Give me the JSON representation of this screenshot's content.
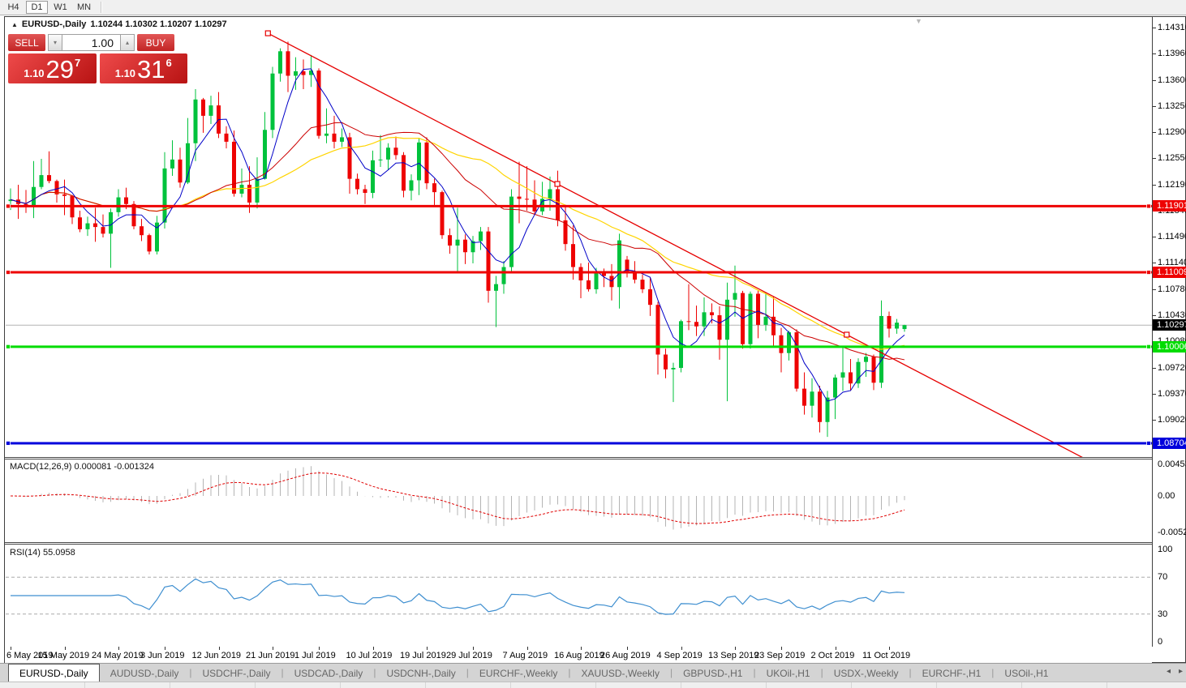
{
  "toolbar": {
    "timeframes": [
      "H4",
      "D1",
      "W1",
      "MN"
    ],
    "active_timeframe": "D1"
  },
  "chart": {
    "collapse_icon": "▲",
    "title_symbol": "EURUSD-,Daily",
    "title_ohlc": "1.10244 1.10302 1.10207 1.10297",
    "shift_marker_icon": "▼",
    "trade_panel": {
      "sell_label": "SELL",
      "buy_label": "BUY",
      "volume": "1.00",
      "volume_down_icon": "▾",
      "volume_up_icon": "▴",
      "sell_price_prefix": "1.10",
      "sell_price_big": "29",
      "sell_price_sup": "7",
      "buy_price_prefix": "1.10",
      "buy_price_big": "31",
      "buy_price_sup": "6"
    },
    "price_axis_ticks": [
      "1.14310",
      "1.13960",
      "1.13600",
      "1.13250",
      "1.12900",
      "1.12550",
      "1.12190",
      "1.11840",
      "1.11490",
      "1.11140",
      "1.10780",
      "1.10430",
      "1.10080",
      "1.09720",
      "1.09370",
      "1.09020"
    ],
    "levels": [
      {
        "label": "1.11901",
        "value": 1.11901,
        "color": "#ee0202",
        "width": 3
      },
      {
        "label": "1.11009",
        "value": 1.11009,
        "color": "#ee0202",
        "width": 3
      },
      {
        "label": "1.10006",
        "value": 1.10006,
        "color": "#00dc00",
        "width": 3
      },
      {
        "label": "1.08704",
        "value": 1.08704,
        "color": "#0000dc",
        "width": 3
      }
    ],
    "current_price": {
      "label": "1.10297",
      "value": 1.10297
    },
    "trendline": {
      "i1": 33.4,
      "p1": 1.14233,
      "i2": 108.5,
      "p2": 1.10168,
      "extend_i": 140
    },
    "date_labels": [
      {
        "text": "6 May 2019",
        "i": 0
      },
      {
        "text": "15 May 2019",
        "i": 7
      },
      {
        "text": "24 May 2019",
        "i": 14
      },
      {
        "text": "3 Jun 2019",
        "i": 20
      },
      {
        "text": "12 Jun 2019",
        "i": 27
      },
      {
        "text": "21 Jun 2019",
        "i": 34
      },
      {
        "text": "1 Jul 2019",
        "i": 40
      },
      {
        "text": "10 Jul 2019",
        "i": 47
      },
      {
        "text": "19 Jul 2019",
        "i": 54
      },
      {
        "text": "29 Jul 2019",
        "i": 60
      },
      {
        "text": "7 Aug 2019",
        "i": 67
      },
      {
        "text": "16 Aug 2019",
        "i": 74
      },
      {
        "text": "26 Aug 2019",
        "i": 80
      },
      {
        "text": "4 Sep 2019",
        "i": 87
      },
      {
        "text": "13 Sep 2019",
        "i": 94
      },
      {
        "text": "23 Sep 2019",
        "i": 100
      },
      {
        "text": "2 Oct 2019",
        "i": 107
      },
      {
        "text": "11 Oct 2019",
        "i": 114
      }
    ],
    "candles": [
      [
        1.1197,
        1.1214,
        1.1185,
        1.1199
      ],
      [
        1.1199,
        1.1219,
        1.1173,
        1.1193
      ],
      [
        1.1193,
        1.1212,
        1.1181,
        1.1189
      ],
      [
        1.1189,
        1.1251,
        1.1174,
        1.1216
      ],
      [
        1.1216,
        1.1254,
        1.1213,
        1.1232
      ],
      [
        1.1232,
        1.1264,
        1.1221,
        1.1224
      ],
      [
        1.1224,
        1.1226,
        1.1195,
        1.1206
      ],
      [
        1.1206,
        1.1226,
        1.1178,
        1.1204
      ],
      [
        1.1204,
        1.1205,
        1.1166,
        1.1175
      ],
      [
        1.1175,
        1.1184,
        1.1155,
        1.1159
      ],
      [
        1.1159,
        1.1176,
        1.115,
        1.1167
      ],
      [
        1.1167,
        1.1188,
        1.1142,
        1.1162
      ],
      [
        1.1162,
        1.1179,
        1.1148,
        1.1153
      ],
      [
        1.1153,
        1.1187,
        1.1107,
        1.1182
      ],
      [
        1.1182,
        1.1213,
        1.1176,
        1.1202
      ],
      [
        1.1202,
        1.1215,
        1.1186,
        1.1193
      ],
      [
        1.1193,
        1.1197,
        1.1159,
        1.1163
      ],
      [
        1.1163,
        1.1173,
        1.1143,
        1.1151
      ],
      [
        1.1151,
        1.1153,
        1.1125,
        1.1129
      ],
      [
        1.1129,
        1.1177,
        1.1125,
        1.1168
      ],
      [
        1.1168,
        1.1263,
        1.116,
        1.1241
      ],
      [
        1.1241,
        1.1279,
        1.1231,
        1.1253
      ],
      [
        1.1253,
        1.1269,
        1.1215,
        1.1222
      ],
      [
        1.1222,
        1.1309,
        1.122,
        1.1275
      ],
      [
        1.1275,
        1.1348,
        1.1251,
        1.1334
      ],
      [
        1.1334,
        1.1336,
        1.1289,
        1.1312
      ],
      [
        1.1312,
        1.1339,
        1.1301,
        1.1326
      ],
      [
        1.1326,
        1.1344,
        1.1282,
        1.1288
      ],
      [
        1.1288,
        1.1298,
        1.1268,
        1.1277
      ],
      [
        1.1277,
        1.1292,
        1.1203,
        1.1207
      ],
      [
        1.1207,
        1.1241,
        1.1202,
        1.1219
      ],
      [
        1.1219,
        1.1244,
        1.1181,
        1.1195
      ],
      [
        1.1195,
        1.1256,
        1.1187,
        1.1227
      ],
      [
        1.1227,
        1.1317,
        1.1226,
        1.1293
      ],
      [
        1.1293,
        1.1378,
        1.1282,
        1.1369
      ],
      [
        1.1369,
        1.1403,
        1.1358,
        1.1399
      ],
      [
        1.1399,
        1.1412,
        1.1344,
        1.1366
      ],
      [
        1.1366,
        1.1391,
        1.1347,
        1.1372
      ],
      [
        1.1372,
        1.1388,
        1.1348,
        1.1367
      ],
      [
        1.1367,
        1.1394,
        1.1351,
        1.1373
      ],
      [
        1.1373,
        1.1376,
        1.1281,
        1.1285
      ],
      [
        1.1285,
        1.1322,
        1.1275,
        1.1288
      ],
      [
        1.1288,
        1.1312,
        1.1268,
        1.1277
      ],
      [
        1.1277,
        1.1295,
        1.127,
        1.1283
      ],
      [
        1.1283,
        1.1289,
        1.1207,
        1.1227
      ],
      [
        1.1227,
        1.1234,
        1.1206,
        1.1213
      ],
      [
        1.1213,
        1.1219,
        1.1193,
        1.1208
      ],
      [
        1.1208,
        1.1265,
        1.1201,
        1.1252
      ],
      [
        1.1252,
        1.1286,
        1.1243,
        1.1253
      ],
      [
        1.1253,
        1.1275,
        1.1239,
        1.1269
      ],
      [
        1.1269,
        1.1284,
        1.1253,
        1.1259
      ],
      [
        1.1259,
        1.1263,
        1.1202,
        1.1211
      ],
      [
        1.1211,
        1.1233,
        1.1198,
        1.1225
      ],
      [
        1.1225,
        1.1282,
        1.1205,
        1.1276
      ],
      [
        1.1276,
        1.1283,
        1.1213,
        1.1221
      ],
      [
        1.1221,
        1.1227,
        1.1189,
        1.1209
      ],
      [
        1.1209,
        1.1211,
        1.1146,
        1.1151
      ],
      [
        1.1151,
        1.116,
        1.1126,
        1.1137
      ],
      [
        1.1137,
        1.1188,
        1.1101,
        1.1145
      ],
      [
        1.1145,
        1.1152,
        1.1112,
        1.1128
      ],
      [
        1.1128,
        1.115,
        1.1113,
        1.1143
      ],
      [
        1.1143,
        1.1162,
        1.1131,
        1.1156
      ],
      [
        1.1156,
        1.1162,
        1.106,
        1.1076
      ],
      [
        1.1076,
        1.1096,
        1.1027,
        1.1085
      ],
      [
        1.1085,
        1.1116,
        1.1072,
        1.1108
      ],
      [
        1.1108,
        1.1213,
        1.1101,
        1.1203
      ],
      [
        1.1203,
        1.125,
        1.1167,
        1.12
      ],
      [
        1.12,
        1.1244,
        1.1184,
        1.1199
      ],
      [
        1.1199,
        1.1225,
        1.118,
        1.1183
      ],
      [
        1.1183,
        1.1223,
        1.1178,
        1.12
      ],
      [
        1.12,
        1.123,
        1.1184,
        1.1213
      ],
      [
        1.1213,
        1.1238,
        1.1163,
        1.1171
      ],
      [
        1.1171,
        1.1192,
        1.113,
        1.1139
      ],
      [
        1.1139,
        1.1164,
        1.1091,
        1.1108
      ],
      [
        1.1108,
        1.1113,
        1.1066,
        1.109
      ],
      [
        1.109,
        1.1114,
        1.1075,
        1.1078
      ],
      [
        1.1078,
        1.1107,
        1.1072,
        1.11
      ],
      [
        1.11,
        1.1106,
        1.1081,
        1.1096
      ],
      [
        1.1096,
        1.1112,
        1.1063,
        1.1081
      ],
      [
        1.1081,
        1.1153,
        1.1052,
        1.1144
      ],
      [
        1.1118,
        1.1123,
        1.1094,
        1.1101
      ],
      [
        1.1101,
        1.1116,
        1.1086,
        1.1091
      ],
      [
        1.1091,
        1.1098,
        1.1073,
        1.1078
      ],
      [
        1.1078,
        1.1094,
        1.1042,
        1.1057
      ],
      [
        1.1057,
        1.1061,
        1.0963,
        1.099
      ],
      [
        1.099,
        1.0998,
        1.0958,
        1.097
      ],
      [
        1.097,
        1.0979,
        1.0926,
        1.0972
      ],
      [
        1.0972,
        1.1037,
        1.0966,
        1.1035
      ],
      [
        1.1035,
        1.1085,
        1.1023,
        1.1034
      ],
      [
        1.1034,
        1.1056,
        1.1015,
        1.1028
      ],
      [
        1.1028,
        1.1067,
        1.1015,
        1.1047
      ],
      [
        1.1047,
        1.1059,
        1.1032,
        1.1043
      ],
      [
        1.1043,
        1.1055,
        1.0983,
        1.101
      ],
      [
        1.101,
        1.1087,
        1.0927,
        1.1064
      ],
      [
        1.1064,
        1.111,
        1.1041,
        1.1073
      ],
      [
        1.1073,
        1.1076,
        1.0998,
        1.1004
      ],
      [
        1.1004,
        1.1075,
        1.0998,
        1.1072
      ],
      [
        1.1072,
        1.1076,
        1.1012,
        1.103
      ],
      [
        1.103,
        1.1074,
        1.1022,
        1.1041
      ],
      [
        1.1041,
        1.1068,
        1.1,
        1.1016
      ],
      [
        1.1016,
        1.1026,
        1.0966,
        1.0992
      ],
      [
        1.0992,
        1.1022,
        1.0982,
        1.102
      ],
      [
        1.102,
        1.1024,
        1.094,
        1.0944
      ],
      [
        1.0944,
        1.0966,
        1.0909,
        1.0921
      ],
      [
        1.0921,
        1.0958,
        1.0905,
        1.094
      ],
      [
        1.094,
        1.0948,
        1.0885,
        1.0899
      ],
      [
        1.0899,
        1.0941,
        1.0879,
        1.0932
      ],
      [
        1.0932,
        1.0963,
        1.0903,
        1.0959
      ],
      [
        1.0959,
        1.0999,
        1.0941,
        1.0966
      ],
      [
        1.0966,
        1.0984,
        1.0941,
        1.0951
      ],
      [
        1.0951,
        1.0985,
        1.0945,
        1.098
      ],
      [
        1.098,
        1.0992,
        1.096,
        1.0987
      ],
      [
        1.0987,
        1.099,
        1.0942,
        1.0952
      ],
      [
        1.0952,
        1.1063,
        1.0945,
        1.1042
      ],
      [
        1.1042,
        1.1048,
        1.1013,
        1.1025
      ],
      [
        1.1025,
        1.1038,
        1.1018,
        1.1033
      ],
      [
        1.10244,
        1.10302,
        1.10207,
        1.10297
      ]
    ],
    "colors": {
      "bull": "#00c23c",
      "bear": "#ee0202",
      "ma_fast": "#0000c8",
      "ma_mid": "#cc0000",
      "ma_slow": "#ffd400",
      "trendline": "#e60000",
      "current_line": "#b4b4b4",
      "current_tag_bg": "#000000",
      "macd_hist": "#b4b4b4",
      "macd_signal": "#e00000",
      "rsi_line": "#3f8fd0"
    }
  },
  "macd": {
    "label": "MACD(12,26,9) 0.000081 -0.001324",
    "axis_ticks": [
      {
        "text": "0.004536",
        "value": 0.004536
      },
      {
        "text": "0.00",
        "value": 0.0
      },
      {
        "text": "-0.005205",
        "value": -0.005205
      }
    ]
  },
  "rsi": {
    "label": "RSI(14) 55.0958",
    "axis_ticks": [
      {
        "text": "100",
        "value": 100
      },
      {
        "text": "70",
        "value": 70
      },
      {
        "text": "30",
        "value": 30
      },
      {
        "text": "0",
        "value": 0
      }
    ],
    "dashed_levels": [
      70,
      30
    ]
  },
  "tabs": {
    "items": [
      {
        "label": "EURUSD-,Daily",
        "active": true
      },
      {
        "label": "AUDUSD-,Daily",
        "active": false
      },
      {
        "label": "USDCHF-,Daily",
        "active": false
      },
      {
        "label": "USDCAD-,Daily",
        "active": false
      },
      {
        "label": "USDCNH-,Daily",
        "active": false
      },
      {
        "label": "EURCHF-,Weekly",
        "active": false
      },
      {
        "label": "XAUUSD-,Weekly",
        "active": false
      },
      {
        "label": "GBPUSD-,H1",
        "active": false
      },
      {
        "label": "UKOil-,H1",
        "active": false
      },
      {
        "label": "USDX-,Weekly",
        "active": false
      },
      {
        "label": "EURCHF-,H1",
        "active": false
      },
      {
        "label": "USOil-,H1",
        "active": false
      }
    ],
    "scroll_left_icon": "◂",
    "scroll_right_icon": "▸"
  }
}
